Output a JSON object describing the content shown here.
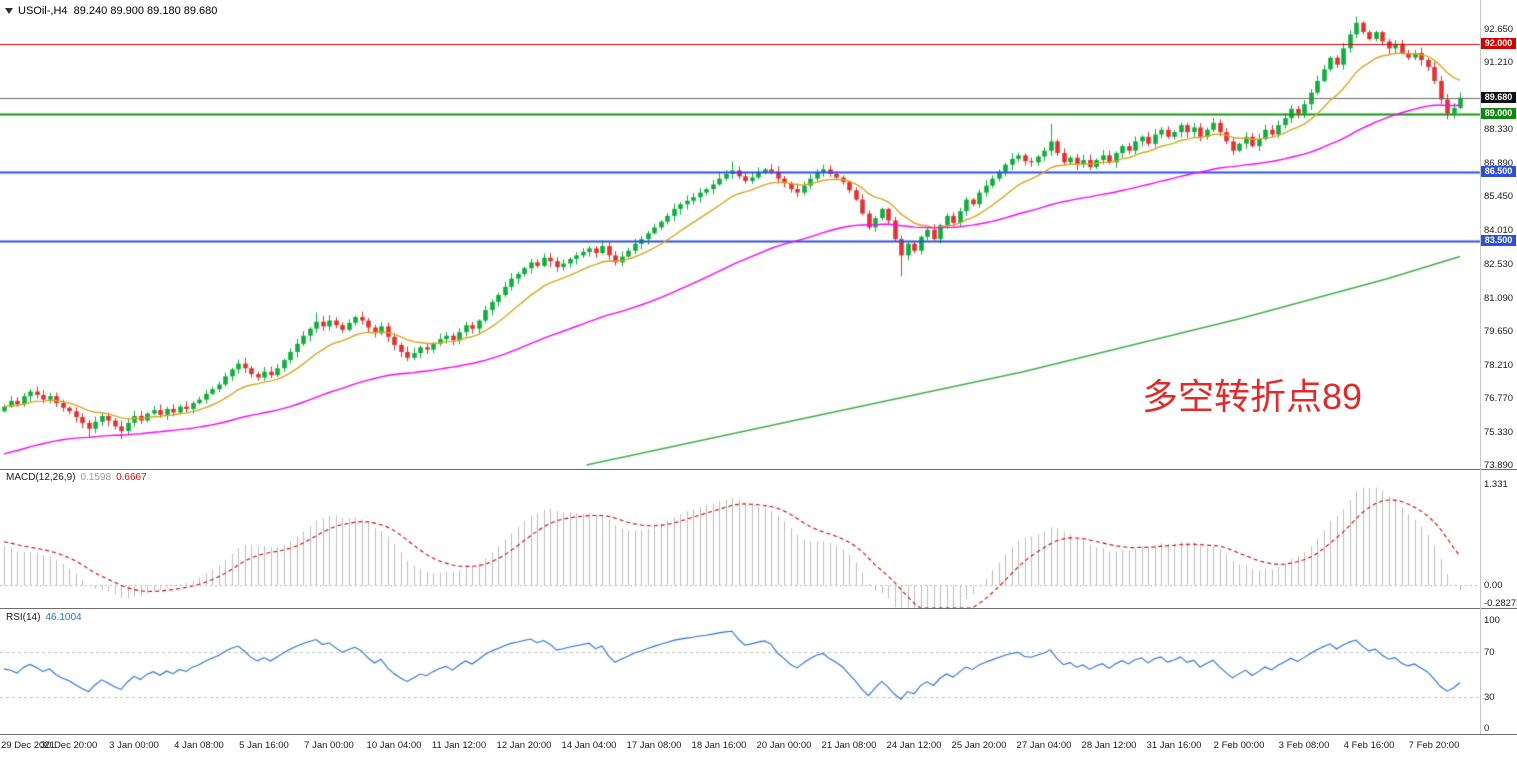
{
  "title_bar": {
    "symbol_period": "USOil-,H4",
    "ohlc_values": "89.240 89.900 89.180 89.680"
  },
  "annotation": {
    "text": "多空转折点89",
    "color": "#e02b2b"
  },
  "macd_panel": {
    "label": "MACD(12,26,9)",
    "main_value": "0.1598",
    "signal_value": "0.6667",
    "axis_labels": [
      "1.331",
      "0.00",
      "-0.2827"
    ]
  },
  "rsi_panel": {
    "label": "RSI(14)",
    "value": "46.1004",
    "axis_labels": [
      "100",
      "70",
      "30",
      "0"
    ]
  },
  "price_axis": {
    "scale_labels": [
      "92.650",
      "91.210",
      "88.330",
      "86.890",
      "85.450",
      "84.010",
      "82.530",
      "81.090",
      "79.650",
      "78.210",
      "76.770",
      "75.330",
      "73.890"
    ],
    "tags": [
      {
        "text": "92.000",
        "bg": "#d40000"
      },
      {
        "text": "89.680",
        "bg": "#111111"
      },
      {
        "text": "89.000",
        "bg": "#0c8a0c"
      },
      {
        "text": "86.500",
        "bg": "#2c50d9"
      },
      {
        "text": "83.500",
        "bg": "#2c50d9"
      }
    ]
  },
  "chart_data": {
    "type": "candlestick",
    "symbol": "USOil",
    "timeframe": "H4",
    "x_labels": [
      "29 Dec 2021",
      "30 Dec 20:00",
      "3 Jan 00:00",
      "4 Jan 08:00",
      "5 Jan 16:00",
      "7 Jan 00:00",
      "10 Jan 04:00",
      "11 Jan 12:00",
      "12 Jan 20:00",
      "14 Jan 04:00",
      "17 Jan 08:00",
      "18 Jan 16:00",
      "20 Jan 00:00",
      "21 Jan 08:00",
      "24 Jan 12:00",
      "25 Jan 20:00",
      "27 Jan 04:00",
      "28 Jan 12:00",
      "31 Jan 16:00",
      "2 Feb 00:00",
      "3 Feb 08:00",
      "4 Feb 16:00",
      "7 Feb 20:00"
    ],
    "candles_per_label": 10,
    "price_range": [
      73.89,
      93.45
    ],
    "first_open": 76.2,
    "closes": [
      76.4,
      76.65,
      76.5,
      76.85,
      77.05,
      76.9,
      76.7,
      76.85,
      76.55,
      76.35,
      76.2,
      75.95,
      75.7,
      75.45,
      75.75,
      76.0,
      75.8,
      75.55,
      75.35,
      75.7,
      76.0,
      75.8,
      76.1,
      76.25,
      76.05,
      76.3,
      76.15,
      76.4,
      76.3,
      76.55,
      76.7,
      76.95,
      77.15,
      77.35,
      77.7,
      78.0,
      78.25,
      78.05,
      77.8,
      77.65,
      77.9,
      77.75,
      78.05,
      78.4,
      78.75,
      79.1,
      79.45,
      79.75,
      80.05,
      79.85,
      80.1,
      79.9,
      79.7,
      80.0,
      80.25,
      80.1,
      79.8,
      79.55,
      79.85,
      79.4,
      79.05,
      78.75,
      78.5,
      78.7,
      78.95,
      78.85,
      79.1,
      79.3,
      79.45,
      79.25,
      79.6,
      79.9,
      79.75,
      80.1,
      80.55,
      80.9,
      81.2,
      81.55,
      81.9,
      82.1,
      82.35,
      82.6,
      82.45,
      82.8,
      82.65,
      82.4,
      82.55,
      82.75,
      82.9,
      83.05,
      83.2,
      83.0,
      83.3,
      82.9,
      82.6,
      82.85,
      83.1,
      83.4,
      83.6,
      83.85,
      84.1,
      84.35,
      84.6,
      84.9,
      85.1,
      85.25,
      85.4,
      85.6,
      85.75,
      85.95,
      86.2,
      86.4,
      86.55,
      86.3,
      86.1,
      86.25,
      86.45,
      86.6,
      86.5,
      86.2,
      86.0,
      85.75,
      85.6,
      85.9,
      86.2,
      86.45,
      86.6,
      86.4,
      86.25,
      86.05,
      85.7,
      85.3,
      84.7,
      84.1,
      84.5,
      84.9,
      84.4,
      83.6,
      82.9,
      83.4,
      83.1,
      83.7,
      84.0,
      83.6,
      84.2,
      84.6,
      84.3,
      84.8,
      85.3,
      85.1,
      85.6,
      85.9,
      86.2,
      86.5,
      86.8,
      87.05,
      87.2,
      86.95,
      86.9,
      87.15,
      87.4,
      87.8,
      87.3,
      86.9,
      87.1,
      86.8,
      87.0,
      86.7,
      87.0,
      87.2,
      86.9,
      87.3,
      87.6,
      87.4,
      87.8,
      88.0,
      87.7,
      88.1,
      88.3,
      88.0,
      88.2,
      88.5,
      88.2,
      88.4,
      88.0,
      88.3,
      88.6,
      88.2,
      87.8,
      87.4,
      87.7,
      88.0,
      87.6,
      87.9,
      88.3,
      88.1,
      88.5,
      88.8,
      89.2,
      89.0,
      89.4,
      89.9,
      90.4,
      90.9,
      91.4,
      91.1,
      91.8,
      92.4,
      92.9,
      92.5,
      92.2,
      92.5,
      92.1,
      91.8,
      92.0,
      91.6,
      91.4,
      91.6,
      91.3,
      91.0,
      90.4,
      89.6,
      89.0,
      89.24,
      89.68
    ],
    "last_candle": {
      "open": 89.24,
      "high": 89.9,
      "low": 89.18,
      "close": 89.68
    },
    "wick_overrides": {
      "13": {
        "low": 75.05
      },
      "18": {
        "low": 75.0
      },
      "48": {
        "high": 80.45
      },
      "92": {
        "high": 83.55
      },
      "112": {
        "high": 86.95
      },
      "138": {
        "low": 82.0
      },
      "161": {
        "high": 88.55
      },
      "208": {
        "high": 93.17
      },
      "222": {
        "low": 88.75
      }
    },
    "up_color": "#0fae3c",
    "down_color": "#e03232",
    "horizontal_lines": [
      {
        "price": 92.0,
        "color": "#d40000",
        "width": 1.2,
        "role": "resistance"
      },
      {
        "price": 89.68,
        "color": "#6b6b6b",
        "width": 1,
        "role": "current-price"
      },
      {
        "price": 89.0,
        "color": "#119611",
        "width": 1.8,
        "role": "pivot"
      },
      {
        "price": 86.5,
        "color": "#2c50d9",
        "width": 1.8,
        "role": "support"
      },
      {
        "price": 83.5,
        "color": "#2c50d9",
        "width": 1.8,
        "role": "support"
      }
    ],
    "moving_averages": [
      {
        "name": "fast-ma",
        "type": "ema",
        "period": 13,
        "color": "#d9a520"
      },
      {
        "name": "mid-ma",
        "type": "ema",
        "period": 60,
        "seed": 74.3,
        "color": "#ff00ff"
      },
      {
        "name": "slow-ma",
        "type": "waypoints",
        "color": "#3fae49",
        "points": [
          [
            0.4,
            73.89
          ],
          [
            0.55,
            75.9
          ],
          [
            0.7,
            77.9
          ],
          [
            0.85,
            80.2
          ],
          [
            0.95,
            81.9
          ],
          [
            1.0,
            82.85
          ]
        ]
      }
    ],
    "macd": {
      "fast": 12,
      "slow": 26,
      "signal_period": 9,
      "fast_seed": 76.6,
      "slow_seed": 76.05,
      "signal_seed": 0.55,
      "current_macd": 0.1598,
      "current_signal": 0.6667,
      "axis_max": 1.331,
      "axis_min": -0.2827,
      "histogram_color": "#bdbdbd",
      "signal_color": "#d40000"
    },
    "rsi": {
      "period": 14,
      "current": 46.1004,
      "levels": [
        70,
        30
      ],
      "range": [
        0,
        100
      ],
      "color": "#2a6fd6",
      "level_color": "#c0c0c0"
    }
  }
}
